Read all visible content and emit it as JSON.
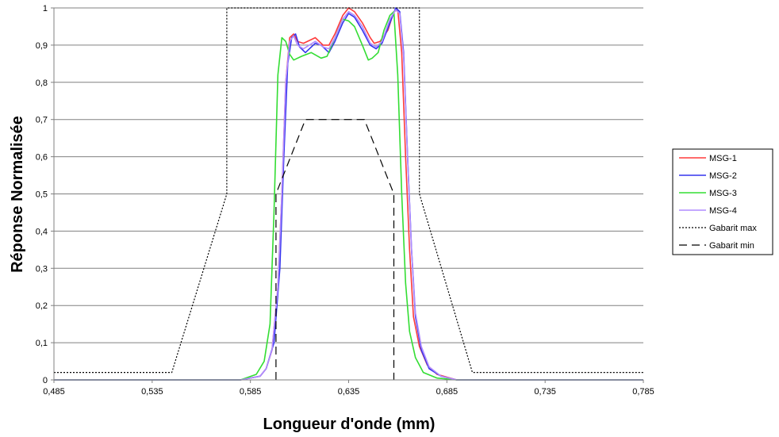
{
  "chart_data": {
    "type": "line",
    "title": "",
    "xlabel": "Longueur d'onde (mm)",
    "ylabel": "Réponse Normalisée",
    "xlim": [
      0.485,
      0.785
    ],
    "ylim": [
      0,
      1
    ],
    "x_ticks": [
      "0,485",
      "0,535",
      "0,585",
      "0,635",
      "0,685",
      "0,735",
      "0,785"
    ],
    "y_ticks": [
      "0",
      "0,1",
      "0,2",
      "0,3",
      "0,4",
      "0,5",
      "0,6",
      "0,7",
      "0,8",
      "0,9",
      "1"
    ],
    "grid": "horizontal",
    "legend_position": "right",
    "series": [
      {
        "name": "MSG-1",
        "color": "#ff3b3b",
        "dash": "solid",
        "points": [
          [
            0.485,
            0
          ],
          [
            0.58,
            0
          ],
          [
            0.59,
            0.01
          ],
          [
            0.593,
            0.03
          ],
          [
            0.596,
            0.08
          ],
          [
            0.599,
            0.25
          ],
          [
            0.601,
            0.5
          ],
          [
            0.603,
            0.8
          ],
          [
            0.605,
            0.92
          ],
          [
            0.607,
            0.93
          ],
          [
            0.609,
            0.91
          ],
          [
            0.612,
            0.905
          ],
          [
            0.618,
            0.92
          ],
          [
            0.622,
            0.9
          ],
          [
            0.625,
            0.9
          ],
          [
            0.628,
            0.93
          ],
          [
            0.632,
            0.98
          ],
          [
            0.635,
            1.0
          ],
          [
            0.638,
            0.99
          ],
          [
            0.642,
            0.96
          ],
          [
            0.646,
            0.92
          ],
          [
            0.648,
            0.905
          ],
          [
            0.651,
            0.91
          ],
          [
            0.655,
            0.94
          ],
          [
            0.658,
            0.99
          ],
          [
            0.66,
            0.995
          ],
          [
            0.662,
            0.88
          ],
          [
            0.664,
            0.6
          ],
          [
            0.666,
            0.35
          ],
          [
            0.668,
            0.17
          ],
          [
            0.671,
            0.09
          ],
          [
            0.675,
            0.04
          ],
          [
            0.68,
            0.015
          ],
          [
            0.69,
            0
          ],
          [
            0.785,
            0
          ]
        ]
      },
      {
        "name": "MSG-2",
        "color": "#3535ee",
        "dash": "solid",
        "points": [
          [
            0.485,
            0
          ],
          [
            0.58,
            0
          ],
          [
            0.59,
            0.01
          ],
          [
            0.593,
            0.03
          ],
          [
            0.597,
            0.1
          ],
          [
            0.6,
            0.3
          ],
          [
            0.602,
            0.6
          ],
          [
            0.604,
            0.85
          ],
          [
            0.606,
            0.92
          ],
          [
            0.608,
            0.93
          ],
          [
            0.61,
            0.895
          ],
          [
            0.613,
            0.88
          ],
          [
            0.618,
            0.905
          ],
          [
            0.621,
            0.9
          ],
          [
            0.625,
            0.88
          ],
          [
            0.628,
            0.91
          ],
          [
            0.632,
            0.96
          ],
          [
            0.635,
            0.985
          ],
          [
            0.638,
            0.975
          ],
          [
            0.642,
            0.94
          ],
          [
            0.646,
            0.9
          ],
          [
            0.649,
            0.89
          ],
          [
            0.652,
            0.905
          ],
          [
            0.656,
            0.96
          ],
          [
            0.659,
            1.0
          ],
          [
            0.661,
            0.99
          ],
          [
            0.663,
            0.88
          ],
          [
            0.665,
            0.6
          ],
          [
            0.667,
            0.35
          ],
          [
            0.669,
            0.17
          ],
          [
            0.672,
            0.08
          ],
          [
            0.676,
            0.03
          ],
          [
            0.682,
            0.01
          ],
          [
            0.69,
            0
          ],
          [
            0.785,
            0
          ]
        ]
      },
      {
        "name": "MSG-3",
        "color": "#33dd33",
        "dash": "solid",
        "points": [
          [
            0.485,
            0
          ],
          [
            0.58,
            0
          ],
          [
            0.588,
            0.015
          ],
          [
            0.592,
            0.05
          ],
          [
            0.595,
            0.15
          ],
          [
            0.597,
            0.45
          ],
          [
            0.599,
            0.82
          ],
          [
            0.601,
            0.92
          ],
          [
            0.603,
            0.91
          ],
          [
            0.605,
            0.875
          ],
          [
            0.607,
            0.86
          ],
          [
            0.611,
            0.87
          ],
          [
            0.616,
            0.88
          ],
          [
            0.621,
            0.865
          ],
          [
            0.624,
            0.87
          ],
          [
            0.628,
            0.92
          ],
          [
            0.632,
            0.97
          ],
          [
            0.635,
            0.965
          ],
          [
            0.638,
            0.95
          ],
          [
            0.642,
            0.9
          ],
          [
            0.645,
            0.86
          ],
          [
            0.647,
            0.865
          ],
          [
            0.65,
            0.88
          ],
          [
            0.653,
            0.94
          ],
          [
            0.656,
            0.98
          ],
          [
            0.658,
            0.99
          ],
          [
            0.66,
            0.82
          ],
          [
            0.662,
            0.5
          ],
          [
            0.664,
            0.26
          ],
          [
            0.666,
            0.13
          ],
          [
            0.669,
            0.06
          ],
          [
            0.673,
            0.02
          ],
          [
            0.68,
            0.005
          ],
          [
            0.69,
            0
          ],
          [
            0.785,
            0
          ]
        ]
      },
      {
        "name": "MSG-4",
        "color": "#b18cff",
        "dash": "solid",
        "points": [
          [
            0.485,
            0
          ],
          [
            0.58,
            0
          ],
          [
            0.59,
            0.01
          ],
          [
            0.593,
            0.03
          ],
          [
            0.596,
            0.08
          ],
          [
            0.599,
            0.25
          ],
          [
            0.601,
            0.5
          ],
          [
            0.603,
            0.8
          ],
          [
            0.605,
            0.91
          ],
          [
            0.607,
            0.925
          ],
          [
            0.609,
            0.9
          ],
          [
            0.612,
            0.89
          ],
          [
            0.618,
            0.91
          ],
          [
            0.622,
            0.895
          ],
          [
            0.625,
            0.89
          ],
          [
            0.628,
            0.92
          ],
          [
            0.632,
            0.97
          ],
          [
            0.635,
            0.99
          ],
          [
            0.638,
            0.98
          ],
          [
            0.642,
            0.95
          ],
          [
            0.646,
            0.905
          ],
          [
            0.649,
            0.895
          ],
          [
            0.652,
            0.91
          ],
          [
            0.656,
            0.97
          ],
          [
            0.659,
            0.995
          ],
          [
            0.661,
            0.985
          ],
          [
            0.663,
            0.87
          ],
          [
            0.665,
            0.6
          ],
          [
            0.667,
            0.35
          ],
          [
            0.669,
            0.18
          ],
          [
            0.672,
            0.09
          ],
          [
            0.676,
            0.035
          ],
          [
            0.682,
            0.01
          ],
          [
            0.69,
            0
          ],
          [
            0.785,
            0
          ]
        ]
      },
      {
        "name": "Gabarit max",
        "color": "#000000",
        "dash": "2,2",
        "points": [
          [
            0.485,
            0.02
          ],
          [
            0.545,
            0.02
          ],
          [
            0.573,
            0.5
          ],
          [
            0.573,
            1.0
          ],
          [
            0.671,
            1.0
          ],
          [
            0.671,
            0.5
          ],
          [
            0.698,
            0.02
          ],
          [
            0.785,
            0.02
          ]
        ]
      },
      {
        "name": "Gabarit min",
        "color": "#000000",
        "dash": "10,6",
        "points": [
          [
            0.598,
            0
          ],
          [
            0.598,
            0.5
          ],
          [
            0.613,
            0.7
          ],
          [
            0.643,
            0.7
          ],
          [
            0.658,
            0.5
          ],
          [
            0.658,
            0
          ]
        ]
      }
    ]
  }
}
